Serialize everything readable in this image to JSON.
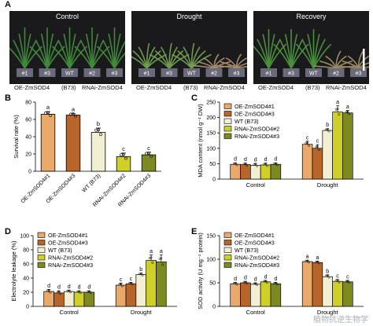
{
  "panel_a": {
    "letter": "A",
    "photos": [
      {
        "title": "Control",
        "tags": [
          "#1",
          "#3",
          "WT",
          "#2",
          "#3"
        ],
        "state": "healthy"
      },
      {
        "title": "Drought",
        "tags": [
          "#1",
          "#3",
          "WT",
          "#2",
          "#3"
        ],
        "state": "wilted"
      },
      {
        "title": "Recovery",
        "tags": [
          "#1",
          "#3",
          "WT",
          "#2",
          "#3"
        ],
        "state": "recovery"
      }
    ],
    "group_labels": [
      "OE-ZmSOD4",
      "(B73)",
      "RNAi-ZmSOD4"
    ]
  },
  "colors": {
    "oe1": "#e8a96a",
    "oe3": "#b8652a",
    "wt": "#f3efd2",
    "rnai2": "#cfcf2a",
    "rnai3": "#7d8a22",
    "photo_bg": "#1a1a1c",
    "tag_bg": "#6a6a7a"
  },
  "chart_data": [
    {
      "panel": "B",
      "type": "bar",
      "ylabel": "Survival rate (%)",
      "ylim": [
        0,
        80
      ],
      "yticks": [
        0,
        20,
        40,
        60,
        80
      ],
      "categories": [
        "OE-ZmSOD4#1",
        "OE-ZmSOD4#3",
        "WT (B73)",
        "RNAi-ZmSOD4#2",
        "RNAi-ZmSOD4#3"
      ],
      "values": [
        66,
        65,
        45,
        17,
        19
      ],
      "errors": [
        3,
        2,
        5,
        4,
        3
      ],
      "letters": [
        "a",
        "a",
        "b",
        "c",
        "c"
      ]
    },
    {
      "panel": "C",
      "type": "bar",
      "ylabel": "MDA content (nmol g⁻¹ DW)",
      "ylim": [
        0,
        250
      ],
      "yticks": [
        0,
        50,
        100,
        150,
        200,
        250
      ],
      "categories": [
        "Control",
        "Drought"
      ],
      "series": [
        {
          "name": "OE-ZmSOD4#1",
          "values": [
            48,
            113
          ],
          "errors": [
            5,
            10
          ],
          "letters": [
            "d",
            "c"
          ]
        },
        {
          "name": "OE-ZmSOD4#3",
          "values": [
            47,
            100
          ],
          "errors": [
            5,
            12
          ],
          "letters": [
            "d",
            "c"
          ]
        },
        {
          "name": "WT (B73)",
          "values": [
            45,
            158
          ],
          "errors": [
            6,
            6
          ],
          "letters": [
            "d",
            "b"
          ]
        },
        {
          "name": "RNAi-ZmSOD4#2",
          "values": [
            46,
            218
          ],
          "errors": [
            6,
            20
          ],
          "letters": [
            "d",
            "a"
          ]
        },
        {
          "name": "RNAi-ZmSOD4#3",
          "values": [
            48,
            215
          ],
          "errors": [
            5,
            8
          ],
          "letters": [
            "d",
            "a"
          ]
        }
      ],
      "legend": "top-left"
    },
    {
      "panel": "D",
      "type": "bar",
      "ylabel": "Electrolyte leakage (%)",
      "ylim": [
        0,
        100
      ],
      "yticks": [
        0,
        20,
        40,
        60,
        80,
        100
      ],
      "categories": [
        "Control",
        "Drought"
      ],
      "series": [
        {
          "name": "OE-ZmSOD4#1",
          "values": [
            21,
            30
          ],
          "errors": [
            3,
            3
          ],
          "letters": [
            "d",
            "c"
          ]
        },
        {
          "name": "OE-ZmSOD4#3",
          "values": [
            19,
            32
          ],
          "errors": [
            3,
            2
          ],
          "letters": [
            "d",
            "c"
          ]
        },
        {
          "name": "WT (B73)",
          "values": [
            21,
            45
          ],
          "errors": [
            2,
            2
          ],
          "letters": [
            "d",
            "b"
          ]
        },
        {
          "name": "RNAi-ZmSOD4#2",
          "values": [
            20,
            65
          ],
          "errors": [
            2,
            8
          ],
          "letters": [
            "d",
            "a"
          ]
        },
        {
          "name": "RNAi-ZmSOD4#3",
          "values": [
            20,
            63
          ],
          "errors": [
            2,
            10
          ],
          "letters": [
            "d",
            "a"
          ]
        }
      ],
      "legend": "top-left"
    },
    {
      "panel": "E",
      "type": "bar",
      "ylabel": "SOD activity (U mg⁻¹ protein)",
      "ylim": [
        0,
        150
      ],
      "yticks": [
        0,
        50,
        100,
        150
      ],
      "categories": [
        "Control",
        "Drought"
      ],
      "series": [
        {
          "name": "OE-ZmSOD4#1",
          "values": [
            48,
            95
          ],
          "errors": [
            3,
            3
          ],
          "letters": [
            "d",
            "a"
          ]
        },
        {
          "name": "OE-ZmSOD4#3",
          "values": [
            50,
            93
          ],
          "errors": [
            3,
            3
          ],
          "letters": [
            "d",
            "a"
          ]
        },
        {
          "name": "WT (B73)",
          "values": [
            47,
            63
          ],
          "errors": [
            3,
            4
          ],
          "letters": [
            "d",
            "b"
          ]
        },
        {
          "name": "RNAi-ZmSOD4#2",
          "values": [
            52,
            53
          ],
          "errors": [
            3,
            4
          ],
          "letters": [
            "d",
            "c"
          ]
        },
        {
          "name": "RNAi-ZmSOD4#3",
          "values": [
            48,
            52
          ],
          "errors": [
            3,
            3
          ],
          "letters": [
            "d",
            "c"
          ]
        }
      ],
      "legend": "top-left"
    }
  ],
  "watermark": "植物抗逆生物学"
}
